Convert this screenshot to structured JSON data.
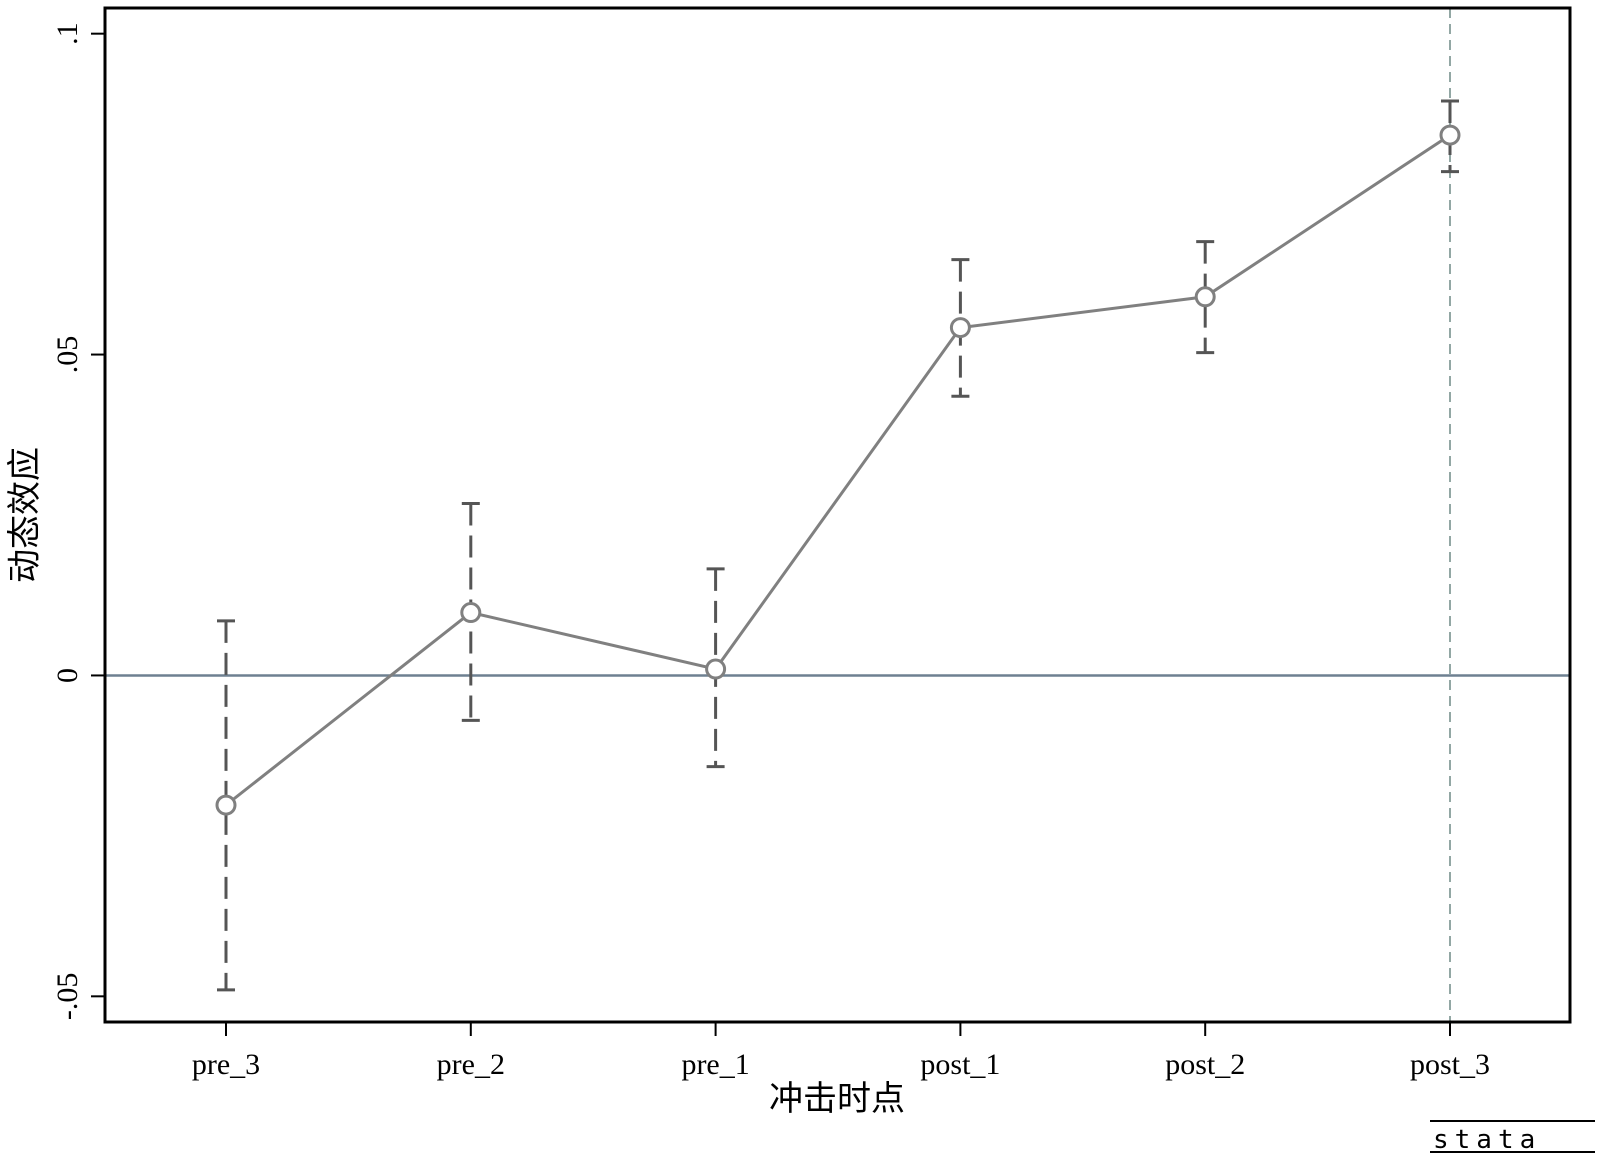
{
  "chart_data": {
    "type": "line",
    "title": "",
    "xlabel": "冲击时点",
    "ylabel": "动态效应",
    "categories": [
      "pre_3",
      "pre_2",
      "pre_1",
      "post_1",
      "post_2",
      "post_3"
    ],
    "series": [
      {
        "values": [
          -0.0202,
          0.0098,
          0.001,
          0.0542,
          0.059,
          0.0842
        ],
        "ci_lower": [
          -0.049,
          -0.007,
          -0.0142,
          0.0435,
          0.0503,
          0.0785
        ],
        "ci_upper": [
          0.0085,
          0.0268,
          0.0166,
          0.0648,
          0.0676,
          0.0895
        ],
        "color": "#808080"
      }
    ],
    "yticks": [
      -0.05,
      0,
      0.05,
      0.1
    ],
    "ytick_labels": [
      "-.05",
      "0",
      ".05",
      ".1"
    ],
    "ylim": [
      -0.054,
      0.104
    ],
    "reference_line_y": 0,
    "reference_line_color": "#6e8091",
    "vertical_line_at": "post_3",
    "vertical_line_color": "#6e8a85",
    "ci_color": "#555555",
    "grid": false,
    "watermark": "stata"
  }
}
